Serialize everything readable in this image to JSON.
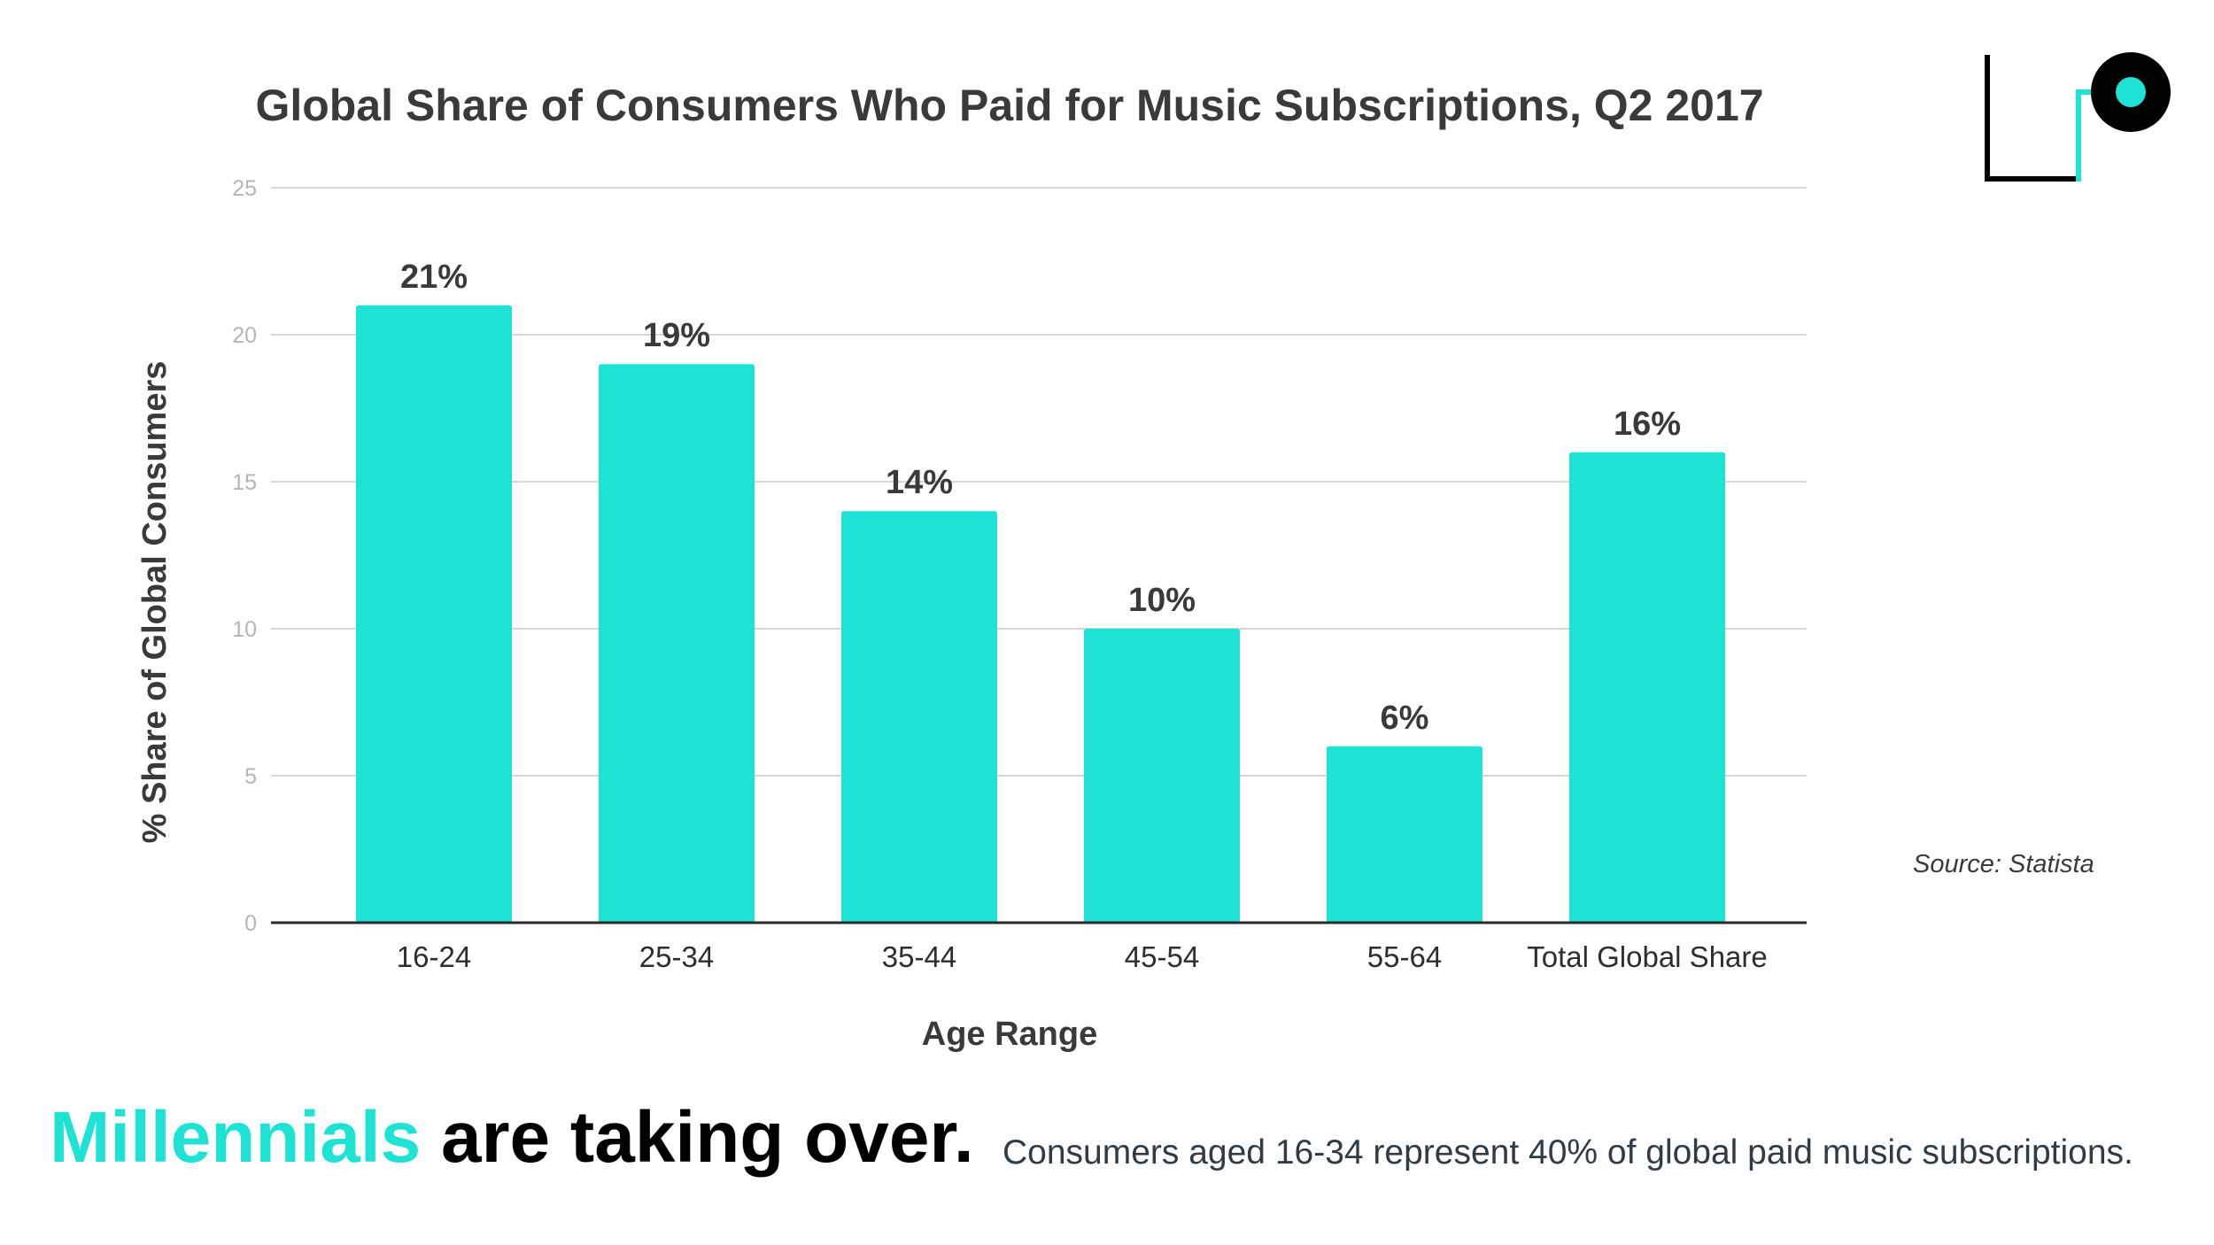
{
  "colors": {
    "bar": "#1ee3d4",
    "accent": "#1ee3d4",
    "text": "#3a3a3a",
    "grid": "#d6d6d6",
    "axis": "#2b2b2b",
    "logo": "#000000"
  },
  "logo": {
    "icon": "brand-logo-icon"
  },
  "footer": {
    "headline_accent": "Millennials",
    "headline_rest": "are taking over.",
    "caption": "Consumers aged 16-34 represent 40% of global paid music subscriptions."
  },
  "source": "Source: Statista",
  "chart_data": {
    "type": "bar",
    "title": "Global Share of Consumers Who Paid for Music Subscriptions, Q2 2017",
    "xlabel": "Age Range",
    "ylabel": "% Share of Global Consumers",
    "categories": [
      "16-24",
      "25-34",
      "35-44",
      "45-54",
      "55-64",
      "Total Global Share"
    ],
    "values": [
      21,
      19,
      14,
      10,
      6,
      16
    ],
    "data_labels": [
      "21%",
      "19%",
      "14%",
      "10%",
      "6%",
      "16%"
    ],
    "ylim": [
      0,
      25
    ],
    "yticks": [
      0,
      5,
      10,
      15,
      20,
      25
    ],
    "grid": true,
    "legend": "none"
  }
}
